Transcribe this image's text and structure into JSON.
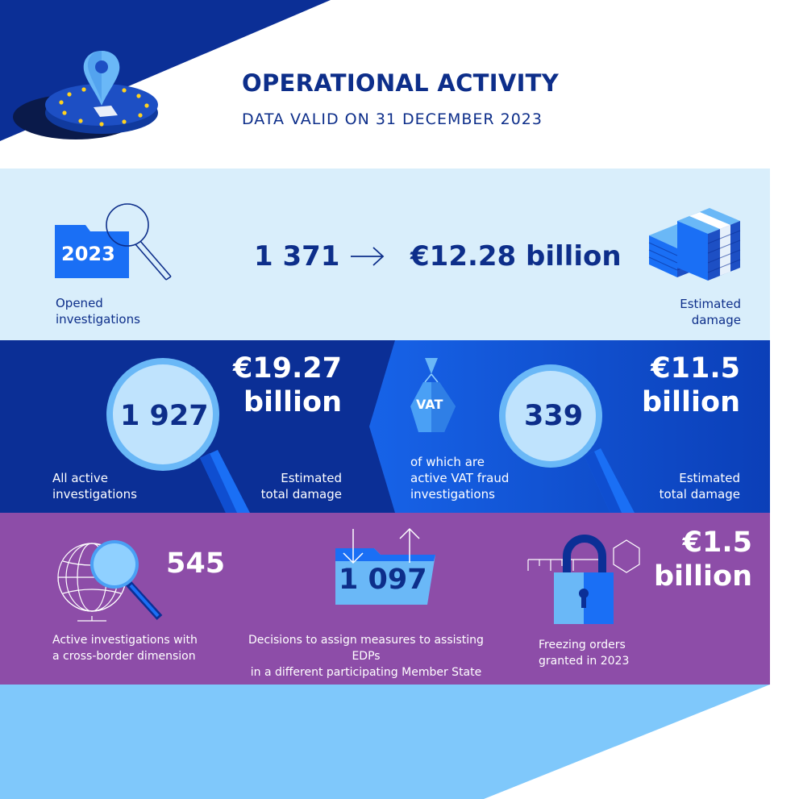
{
  "header": {
    "title": "OPERATIONAL ACTIVITY",
    "subtitle": "DATA VALID ON 31 DECEMBER 2023"
  },
  "opened": {
    "year_badge": "2023",
    "label_line1": "Opened",
    "label_line2": "investigations",
    "count": "1 371",
    "damage": "€12.28 billion",
    "damage_label_line1": "Estimated",
    "damage_label_line2": "damage"
  },
  "active": {
    "count": "1 927",
    "label_line1": "All active",
    "label_line2": "investigations",
    "damage_line1": "€19.27",
    "damage_line2": "billion",
    "damage_label_line1": "Estimated",
    "damage_label_line2": "total damage"
  },
  "vat": {
    "badge": "VAT",
    "count": "339",
    "label_line1": "of which are",
    "label_line2": "active VAT fraud",
    "label_line3": "investigations",
    "damage_line1": "€11.5",
    "damage_line2": "billion",
    "damage_label_line1": "Estimated",
    "damage_label_line2": "total damage"
  },
  "crossborder": {
    "count": "545",
    "label_line1": "Active investigations with",
    "label_line2": "a cross-border dimension"
  },
  "decisions": {
    "count": "1 097",
    "label_line1": "Decisions to assign measures to assisting EDPs",
    "label_line2": "in a different participating Member State"
  },
  "freezing": {
    "amount_line1": "€1.5",
    "amount_line2": "billion",
    "label_line1": "Freezing orders",
    "label_line2": "granted in 2023"
  },
  "colors": {
    "navy": "#0b2f96",
    "light_blue": "#d9eefb",
    "purple": "#8d4da8",
    "sky": "#7fc8fb",
    "accent": "#1a6ff5"
  }
}
